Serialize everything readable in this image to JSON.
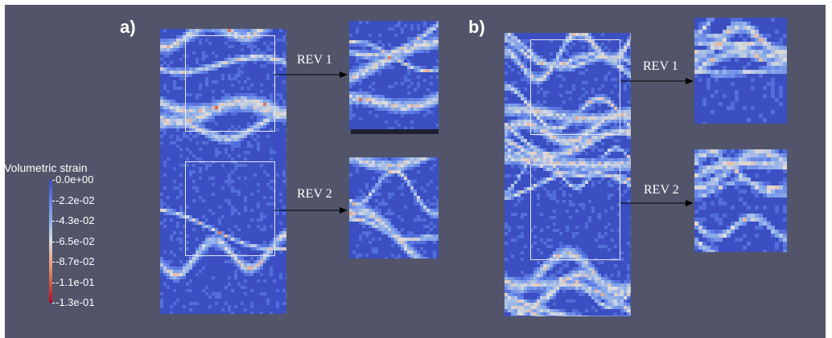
{
  "panels": {
    "a": {
      "letter": "a)",
      "rev1_label": "REV 1",
      "rev2_label": "REV 2"
    },
    "b": {
      "letter": "b)",
      "rev1_label": "REV 1",
      "rev2_label": "REV 2"
    }
  },
  "colorbar": {
    "title": "Volumetric strain",
    "ticks": [
      "0.0e+00",
      "-2.2e-02",
      "-4.3e-02",
      "-6.5e-02",
      "-8.7e-02",
      "-1.1e-01",
      "-1.3e-01"
    ],
    "colors": [
      "#3a4cc0",
      "#5f7fe6",
      "#8fafea",
      "#dcdcdc",
      "#e8a687",
      "#d5604d",
      "#b40426"
    ]
  }
}
